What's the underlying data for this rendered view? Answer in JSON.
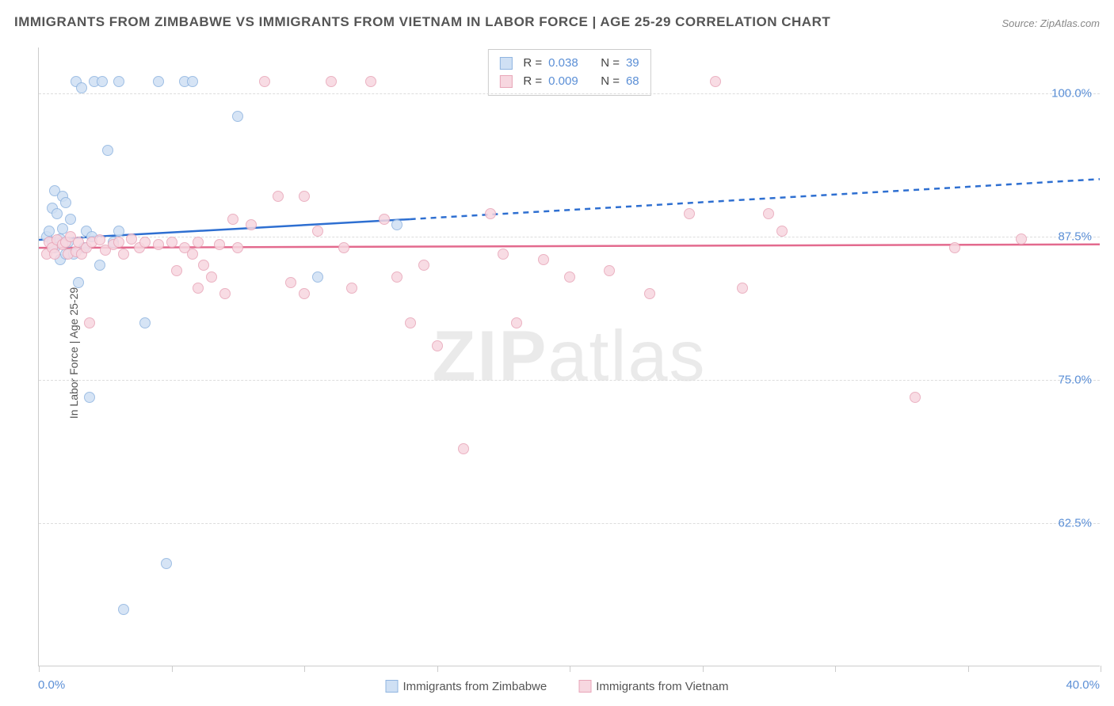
{
  "title": "IMMIGRANTS FROM ZIMBABWE VS IMMIGRANTS FROM VIETNAM IN LABOR FORCE | AGE 25-29 CORRELATION CHART",
  "source": "Source: ZipAtlas.com",
  "watermark_a": "ZIP",
  "watermark_b": "atlas",
  "chart": {
    "type": "scatter",
    "y_axis_label": "In Labor Force | Age 25-29",
    "xlim": [
      0,
      40
    ],
    "ylim": [
      50,
      104
    ],
    "x_ticks": [
      0,
      5,
      10,
      15,
      20,
      25,
      30,
      35,
      40
    ],
    "x_tick_labels_shown": {
      "min": "0.0%",
      "max": "40.0%"
    },
    "y_ticks": [
      62.5,
      75.0,
      87.5,
      100.0
    ],
    "y_tick_labels": [
      "62.5%",
      "75.0%",
      "87.5%",
      "100.0%"
    ],
    "background_color": "#ffffff",
    "grid_color": "#dddddd",
    "axis_color": "#cccccc",
    "label_color": "#5b8fd6",
    "title_color": "#555555",
    "title_fontsize": 17,
    "tick_fontsize": 15,
    "axis_label_fontsize": 14,
    "point_radius": 7,
    "point_opacity": 0.85,
    "series": [
      {
        "name": "Immigrants from Zimbabwe",
        "fill": "#cfe0f4",
        "stroke": "#8fb4e0",
        "trend_color": "#2e6fd1",
        "trend_width": 2.5,
        "r": 0.038,
        "n": 39,
        "trend": {
          "x1": 0,
          "y1": 87.2,
          "x2_solid": 14,
          "y2_solid": 89.0,
          "x2_dash": 40,
          "y2_dash": 92.5
        },
        "points": [
          [
            0.3,
            87.5
          ],
          [
            0.4,
            88.0
          ],
          [
            0.5,
            87.0
          ],
          [
            0.5,
            90.0
          ],
          [
            0.6,
            86.5
          ],
          [
            0.6,
            91.5
          ],
          [
            0.7,
            89.5
          ],
          [
            0.8,
            87.3
          ],
          [
            0.8,
            85.5
          ],
          [
            0.9,
            88.2
          ],
          [
            0.9,
            91.0
          ],
          [
            1.0,
            86.0
          ],
          [
            1.0,
            90.5
          ],
          [
            1.1,
            87.0
          ],
          [
            1.2,
            89.0
          ],
          [
            1.3,
            86.0
          ],
          [
            1.4,
            101.0
          ],
          [
            1.5,
            83.5
          ],
          [
            1.6,
            100.5
          ],
          [
            1.7,
            86.5
          ],
          [
            1.8,
            88.0
          ],
          [
            1.9,
            73.5
          ],
          [
            2.0,
            87.5
          ],
          [
            2.1,
            101.0
          ],
          [
            2.3,
            85.0
          ],
          [
            2.4,
            101.0
          ],
          [
            2.6,
            95.0
          ],
          [
            2.8,
            87.0
          ],
          [
            3.0,
            101.0
          ],
          [
            3.0,
            88.0
          ],
          [
            3.2,
            55.0
          ],
          [
            4.0,
            80.0
          ],
          [
            4.5,
            101.0
          ],
          [
            4.8,
            59.0
          ],
          [
            5.5,
            101.0
          ],
          [
            5.8,
            101.0
          ],
          [
            7.5,
            98.0
          ],
          [
            10.5,
            84.0
          ],
          [
            13.5,
            88.5
          ]
        ]
      },
      {
        "name": "Immigrants from Vietnam",
        "fill": "#f7d7e0",
        "stroke": "#e8a5b8",
        "trend_color": "#e36a8e",
        "trend_width": 2.5,
        "r": 0.009,
        "n": 68,
        "trend": {
          "x1": 0,
          "y1": 86.5,
          "x2_solid": 40,
          "y2_solid": 86.8,
          "x2_dash": 40,
          "y2_dash": 86.8
        },
        "points": [
          [
            0.3,
            86.0
          ],
          [
            0.4,
            87.0
          ],
          [
            0.5,
            86.5
          ],
          [
            0.6,
            86.0
          ],
          [
            0.7,
            87.2
          ],
          [
            0.9,
            86.8
          ],
          [
            1.0,
            87.0
          ],
          [
            1.1,
            86.0
          ],
          [
            1.2,
            87.5
          ],
          [
            1.4,
            86.2
          ],
          [
            1.5,
            87.0
          ],
          [
            1.6,
            86.0
          ],
          [
            1.8,
            86.5
          ],
          [
            1.9,
            80.0
          ],
          [
            2.0,
            87.0
          ],
          [
            2.3,
            87.2
          ],
          [
            2.5,
            86.3
          ],
          [
            2.8,
            86.8
          ],
          [
            3.0,
            87.0
          ],
          [
            3.2,
            86.0
          ],
          [
            3.5,
            87.3
          ],
          [
            3.8,
            86.5
          ],
          [
            4.0,
            87.0
          ],
          [
            4.5,
            86.8
          ],
          [
            5.0,
            87.0
          ],
          [
            5.2,
            84.5
          ],
          [
            5.5,
            86.5
          ],
          [
            5.8,
            86.0
          ],
          [
            6.0,
            83.0
          ],
          [
            6.0,
            87.0
          ],
          [
            6.2,
            85.0
          ],
          [
            6.5,
            84.0
          ],
          [
            6.8,
            86.8
          ],
          [
            7.0,
            82.5
          ],
          [
            7.3,
            89.0
          ],
          [
            7.5,
            86.5
          ],
          [
            8.0,
            88.5
          ],
          [
            8.5,
            101.0
          ],
          [
            9.0,
            91.0
          ],
          [
            9.5,
            83.5
          ],
          [
            10.0,
            91.0
          ],
          [
            10.0,
            82.5
          ],
          [
            10.5,
            88.0
          ],
          [
            11.0,
            101.0
          ],
          [
            11.5,
            86.5
          ],
          [
            11.8,
            83.0
          ],
          [
            12.5,
            101.0
          ],
          [
            13.0,
            89.0
          ],
          [
            13.5,
            84.0
          ],
          [
            14.0,
            80.0
          ],
          [
            14.5,
            85.0
          ],
          [
            15.0,
            78.0
          ],
          [
            16.0,
            69.0
          ],
          [
            17.0,
            89.5
          ],
          [
            17.5,
            86.0
          ],
          [
            18.0,
            80.0
          ],
          [
            19.0,
            85.5
          ],
          [
            20.0,
            84.0
          ],
          [
            21.5,
            84.5
          ],
          [
            23.0,
            82.5
          ],
          [
            24.5,
            89.5
          ],
          [
            25.5,
            101.0
          ],
          [
            26.5,
            83.0
          ],
          [
            27.5,
            89.5
          ],
          [
            28.0,
            88.0
          ],
          [
            33.0,
            73.5
          ],
          [
            34.5,
            86.5
          ],
          [
            37.0,
            87.3
          ]
        ]
      }
    ]
  },
  "legend_labels": {
    "r_label": "R =",
    "n_label": "N ="
  }
}
